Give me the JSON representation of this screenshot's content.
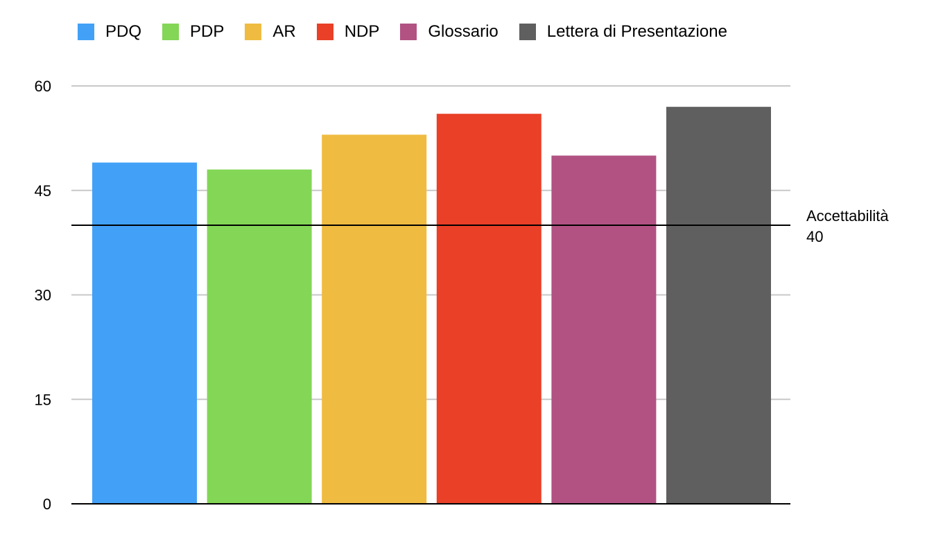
{
  "chart_data": {
    "type": "bar",
    "categories": [
      "PDQ",
      "PDP",
      "AR",
      "NDP",
      "Glossario",
      "Lettera di Presentazione"
    ],
    "series": [
      {
        "name": "PDQ",
        "color": "#42A1F7",
        "value": 49
      },
      {
        "name": "PDP",
        "color": "#83D656",
        "value": 48
      },
      {
        "name": "AR",
        "color": "#EFBB41",
        "value": 53
      },
      {
        "name": "NDP",
        "color": "#E94027",
        "value": 56
      },
      {
        "name": "Glossario",
        "color": "#B25283",
        "value": 50
      },
      {
        "name": "Lettera di Presentazione",
        "color": "#5F5F5F",
        "value": 57
      }
    ],
    "ylim": [
      0,
      60
    ],
    "yticks": [
      0,
      15,
      30,
      45,
      60
    ],
    "grid": true,
    "legend_position": "top",
    "reference_line": {
      "label": "Accettabilità",
      "value": 40,
      "value_label": "40"
    },
    "title": "",
    "xlabel": "",
    "ylabel": ""
  }
}
